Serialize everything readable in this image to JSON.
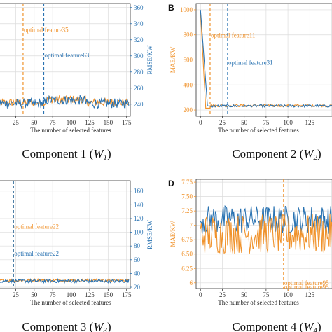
{
  "colors": {
    "orange": "#f0922b",
    "blue": "#2a73b2"
  },
  "xlabel": "The number of selected features",
  "chart_data": [
    {
      "type": "line",
      "panel_label": "",
      "caption": {
        "text": "Component 1 (",
        "var": "W",
        "sub": "1",
        "close": ")"
      },
      "xlabel": "The number of selected features",
      "ylabel": "",
      "ylabel_right": "RMSE/KW",
      "xlim": [
        0,
        180
      ],
      "x_ticks": [
        25,
        50,
        75,
        100,
        125,
        150,
        175
      ],
      "ylim_right": [
        225,
        365
      ],
      "y_ticks_right": [
        240,
        260,
        280,
        300,
        320,
        340,
        360
      ],
      "series": [
        {
          "color": "orange",
          "baseline": 242,
          "noise": 5
        },
        {
          "color": "blue",
          "baseline": 241,
          "noise": 6
        }
      ],
      "annotations": [
        {
          "text": "optimal feature35",
          "x": 35,
          "color": "orange",
          "label_y": 330
        },
        {
          "text": "optimal feature63",
          "x": 63,
          "color": "blue",
          "label_y": 298
        }
      ]
    },
    {
      "type": "line",
      "panel_label": "B",
      "caption": {
        "text": "Component 2 (",
        "var": "W",
        "sub": "2",
        "close": ")"
      },
      "xlabel": "The number of selected features",
      "ylabel": "MAE/KW",
      "ylabel_right": "",
      "xlim": [
        -5,
        160
      ],
      "x_ticks": [
        0,
        25,
        50,
        75,
        100,
        125,
        150
      ],
      "ylim": [
        150,
        1050
      ],
      "y_ticks": [
        200,
        400,
        600,
        800,
        1000
      ],
      "series": [
        {
          "color": "orange",
          "baseline": 235,
          "noise": 10
        },
        {
          "color": "blue",
          "baseline": 232,
          "noise": 10
        }
      ],
      "annotations": [
        {
          "text": "optimal feature11",
          "x": 11,
          "color": "orange",
          "label_y": 780
        },
        {
          "text": "optimal feature31",
          "x": 31,
          "color": "blue",
          "label_y": 560
        }
      ]
    },
    {
      "type": "line",
      "panel_label": "",
      "caption": {
        "text": "Component 3 (",
        "var": "W",
        "sub": "3",
        "close": ")"
      },
      "xlabel": "The number of selected features",
      "ylabel": "",
      "ylabel_right": "RMSE/KW",
      "xlim": [
        0,
        180
      ],
      "x_ticks": [
        25,
        50,
        75,
        100,
        125,
        150,
        175
      ],
      "ylim_right": [
        18,
        175
      ],
      "y_ticks_right": [
        20,
        40,
        60,
        80,
        100,
        120,
        140,
        160
      ],
      "series": [
        {
          "color": "orange",
          "baseline": 30,
          "noise": 2
        },
        {
          "color": "blue",
          "baseline": 29,
          "noise": 2.5
        }
      ],
      "annotations": [
        {
          "text": "optimal feature22",
          "x": 22,
          "color": "orange",
          "label_y": 105
        },
        {
          "text": "optimal feature22",
          "x": 22,
          "color": "blue",
          "label_y": 66
        }
      ]
    },
    {
      "type": "line",
      "panel_label": "D",
      "caption": {
        "text": "Component 4 (",
        "var": "W",
        "sub": "4",
        "close": ")"
      },
      "xlabel": "The number of selected features",
      "ylabel": "MAE/KW",
      "ylabel_right": "",
      "xlim": [
        -5,
        160
      ],
      "x_ticks": [
        0,
        25,
        50,
        75,
        100,
        125,
        150
      ],
      "ylim": [
        5.9,
        7.8
      ],
      "y_ticks": [
        6.0,
        6.25,
        6.5,
        6.75,
        7.0,
        7.25,
        7.5,
        7.75
      ],
      "series": [
        {
          "color": "blue",
          "baseline": 7.1,
          "noise": 0.25
        },
        {
          "color": "orange",
          "baseline": 6.85,
          "noise": 0.35
        }
      ],
      "annotations": [
        {
          "text": "optimal feature95",
          "x": 95,
          "color": "orange",
          "label_y": 5.96
        },
        {
          "text": "optimal feature95",
          "x": 95,
          "color": "orange",
          "label_y": 5.89
        }
      ]
    }
  ]
}
